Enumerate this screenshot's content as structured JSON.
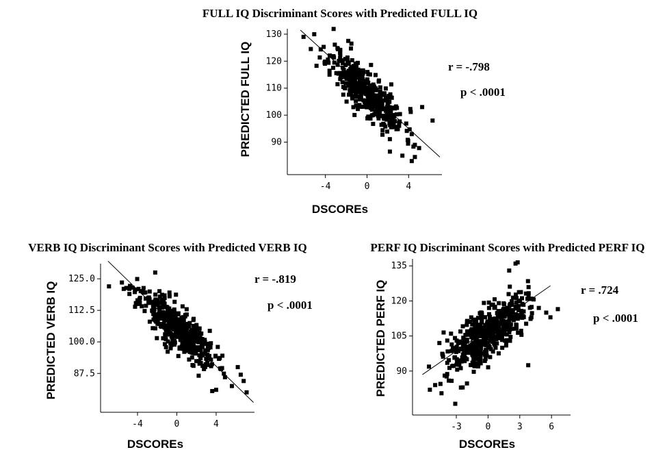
{
  "chart_data": [
    {
      "id": "full",
      "type": "scatter",
      "title": "FULL IQ Discriminant Scores with Predicted FULL IQ",
      "xlabel": "DSCOREs",
      "ylabel": "PREDICTED FULL IQ",
      "xlim": [
        -7,
        7.2
      ],
      "ylim": [
        80,
        132
      ],
      "xticks": [
        -4,
        0,
        4
      ],
      "xtick_labels": [
        "-4",
        "0",
        "4"
      ],
      "yticks": [
        90,
        100,
        110,
        120,
        130
      ],
      "ytick_labels": [
        "90",
        "100",
        "110",
        "120",
        "130"
      ],
      "grid": false,
      "fit_line": {
        "x1": -6.4,
        "y1": 131.5,
        "x2": 7.0,
        "y2": 84.5
      },
      "annotations": [
        {
          "text": "r = -.798",
          "x": 4.6,
          "y": 118.5
        },
        {
          "text": "p < .0001",
          "x": 5.0,
          "y": 108.7
        }
      ],
      "generator": {
        "n": 420,
        "xcenter": 0.0,
        "xspread": 1.8,
        "intercept": 108.5,
        "slope": -3.5,
        "noise": 4.2,
        "seed": 11
      },
      "points": [
        [
          -6.1,
          129
        ],
        [
          -5.4,
          124.5
        ],
        [
          6.3,
          98
        ],
        [
          5.3,
          103
        ],
        [
          4.6,
          89
        ],
        [
          4.3,
          83
        ],
        [
          4.6,
          84.5
        ],
        [
          3.4,
          85
        ],
        [
          2.2,
          86.5
        ],
        [
          -1.8,
          127.5
        ],
        [
          -1.5,
          126.5
        ],
        [
          -3.6,
          115
        ]
      ]
    },
    {
      "id": "verb",
      "type": "scatter",
      "title": "VERB  IQ Discriminant Scores with Predicted VERB IQ",
      "xlabel": "DSCOREs",
      "ylabel": "PREDICTED VERB IQ",
      "xlim": [
        -7.2,
        7.9
      ],
      "ylim": [
        74,
        131
      ],
      "xticks": [
        -4,
        0,
        4
      ],
      "xtick_labels": [
        "-4",
        "0",
        "4"
      ],
      "yticks": [
        87.5,
        100,
        112.5,
        125
      ],
      "ytick_labels": [
        "87.5",
        "100.0",
        "112.5",
        "125.0"
      ],
      "grid": false,
      "fit_line": {
        "x1": -7.0,
        "y1": 132,
        "x2": 7.8,
        "y2": 76
      },
      "annotations": [
        {
          "text": "r = -.819",
          "x": 8.2,
          "y": 123.5
        },
        {
          "text": "p < .0001",
          "x": 9.5,
          "y": 111.8
        }
      ],
      "generator": {
        "n": 470,
        "xcenter": 0.0,
        "xspread": 1.9,
        "intercept": 105.5,
        "slope": -3.3,
        "noise": 4.2,
        "seed": 23
      },
      "points": [
        [
          -6.9,
          122
        ],
        [
          -5.4,
          121
        ],
        [
          -4.5,
          121.5
        ],
        [
          -3.9,
          121
        ],
        [
          -2.2,
          127.5
        ],
        [
          7.1,
          80
        ],
        [
          6.8,
          84.5
        ],
        [
          6.5,
          87
        ],
        [
          5.6,
          82.5
        ],
        [
          4.9,
          86
        ],
        [
          4.0,
          81
        ],
        [
          3.6,
          80.5
        ],
        [
          6.2,
          90
        ]
      ]
    },
    {
      "id": "perf",
      "type": "scatter",
      "title": "PERF IQ Discriminant Scores with Predicted PERF IQ",
      "xlabel": "DSCOREs",
      "ylabel": "PREDICTED PERF IQ",
      "xlim": [
        -6.3,
        7.8
      ],
      "ylim": [
        75,
        138
      ],
      "xticks": [
        -3,
        0,
        3,
        6
      ],
      "xtick_labels": [
        "-3",
        "0",
        "3",
        "6"
      ],
      "yticks": [
        90,
        105,
        120,
        135
      ],
      "ytick_labels": [
        "90",
        "105",
        "120",
        "135"
      ],
      "grid": false,
      "fit_line": {
        "x1": -6.2,
        "y1": 88.5,
        "x2": 5.9,
        "y2": 126.5
      },
      "annotations": [
        {
          "text": "r = .724",
          "x": 6.8,
          "y": 124.5
        },
        {
          "text": "p < .0001",
          "x": 7.8,
          "y": 113.5
        }
      ],
      "generator": {
        "n": 480,
        "xcenter": 0.0,
        "xspread": 1.8,
        "intercept": 107.0,
        "slope": 3.1,
        "noise": 5.5,
        "seed": 37
      },
      "points": [
        [
          -5.5,
          82
        ],
        [
          -5.0,
          84
        ],
        [
          -4.5,
          84.5
        ],
        [
          -4.4,
          80.5
        ],
        [
          -3.1,
          76
        ],
        [
          -2.4,
          83
        ],
        [
          -4.6,
          102
        ],
        [
          -4.2,
          106.5
        ],
        [
          -3.5,
          106
        ],
        [
          2.6,
          136
        ],
        [
          2.8,
          136.5
        ],
        [
          2.0,
          133
        ],
        [
          4.8,
          117
        ],
        [
          5.5,
          115
        ],
        [
          5.9,
          113
        ],
        [
          6.6,
          116.5
        ],
        [
          3.8,
          92.5
        ],
        [
          4.1,
          113
        ]
      ]
    }
  ]
}
